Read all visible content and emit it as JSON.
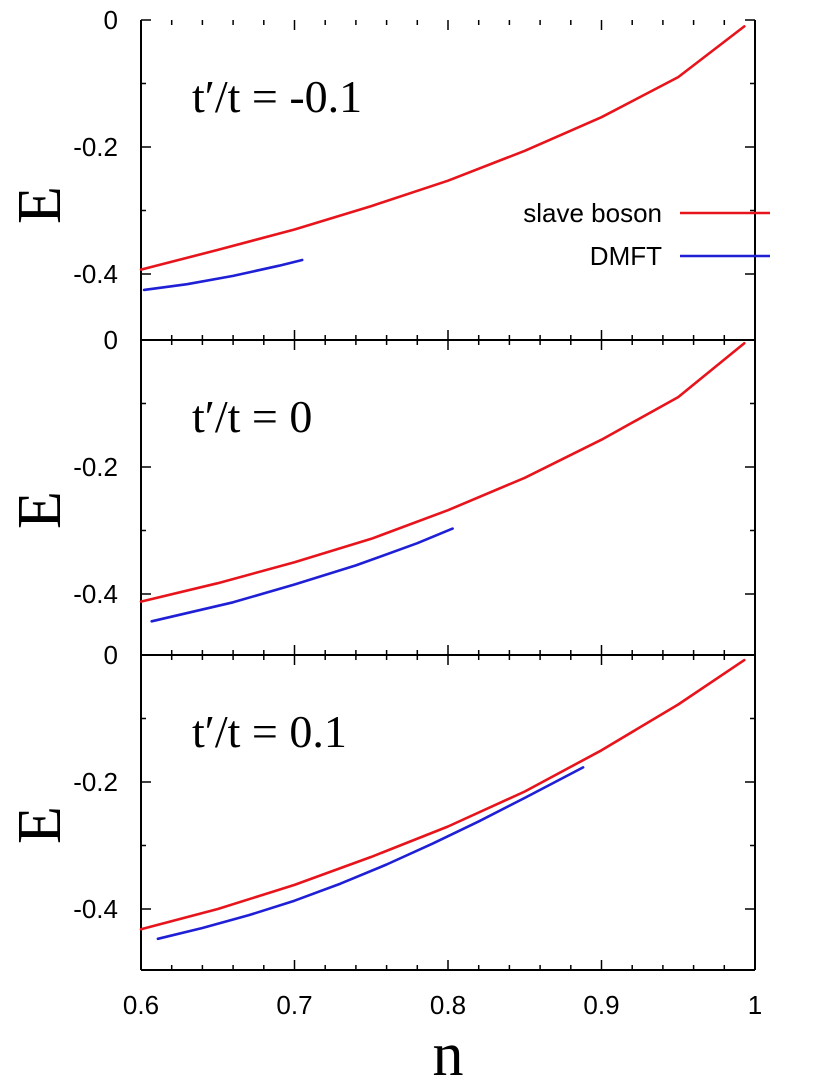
{
  "chart_data": {
    "type": "line",
    "xlabel": "n",
    "ylabel": "E",
    "xlim": [
      0.6,
      1.0
    ],
    "x_ticks": [
      "0.6",
      "0.7",
      "0.8",
      "0.9",
      "1"
    ],
    "legend": {
      "placement": "right, top panel",
      "entries": [
        {
          "name": "slave boson",
          "color": "#e8141c"
        },
        {
          "name": "DMFT",
          "color": "#1f1fd6"
        }
      ]
    },
    "panels": [
      {
        "label": "t′/t = -0.1",
        "ylim": [
          -0.5,
          0.0
        ],
        "y_ticks": [
          "0",
          "-0.2",
          "-0.4"
        ],
        "series": [
          {
            "name": "slave boson",
            "color": "#e8141c",
            "x": [
              0.6,
              0.65,
              0.7,
              0.75,
              0.8,
              0.85,
              0.9,
              0.95,
              0.993
            ],
            "y": [
              -0.393,
              -0.362,
              -0.33,
              -0.293,
              -0.253,
              -0.206,
              -0.153,
              -0.09,
              -0.01
            ]
          },
          {
            "name": "DMFT",
            "color": "#1f1fd6",
            "x": [
              0.602,
              0.63,
              0.66,
              0.69,
              0.705
            ],
            "y": [
              -0.425,
              -0.416,
              -0.403,
              -0.387,
              -0.378
            ]
          }
        ]
      },
      {
        "label": "t′/t = 0",
        "ylim": [
          -0.5,
          0.0
        ],
        "y_ticks": [
          "0",
          "-0.2",
          "-0.4"
        ],
        "series": [
          {
            "name": "slave boson",
            "color": "#e8141c",
            "x": [
              0.6,
              0.65,
              0.7,
              0.75,
              0.8,
              0.85,
              0.9,
              0.95,
              0.993
            ],
            "y": [
              -0.412,
              -0.383,
              -0.35,
              -0.313,
              -0.268,
              -0.217,
              -0.157,
              -0.09,
              -0.005
            ]
          },
          {
            "name": "DMFT",
            "color": "#1f1fd6",
            "x": [
              0.607,
              0.66,
              0.7,
              0.74,
              0.78,
              0.803
            ],
            "y": [
              -0.443,
              -0.413,
              -0.385,
              -0.355,
              -0.32,
              -0.297
            ]
          }
        ]
      },
      {
        "label": "t′/t = 0.1",
        "ylim": [
          -0.5,
          0.0
        ],
        "y_ticks": [
          "0",
          "-0.2",
          "-0.4"
        ],
        "series": [
          {
            "name": "slave boson",
            "color": "#e8141c",
            "x": [
              0.6,
              0.65,
              0.7,
              0.75,
              0.8,
              0.85,
              0.9,
              0.95,
              0.993
            ],
            "y": [
              -0.432,
              -0.4,
              -0.362,
              -0.318,
              -0.27,
              -0.215,
              -0.15,
              -0.078,
              -0.008
            ]
          },
          {
            "name": "DMFT",
            "color": "#1f1fd6",
            "x": [
              0.611,
              0.64,
              0.67,
              0.7,
              0.73,
              0.76,
              0.79,
              0.82,
              0.85,
              0.888
            ],
            "y": [
              -0.447,
              -0.43,
              -0.41,
              -0.387,
              -0.36,
              -0.33,
              -0.297,
              -0.262,
              -0.225,
              -0.177
            ]
          }
        ]
      }
    ]
  }
}
